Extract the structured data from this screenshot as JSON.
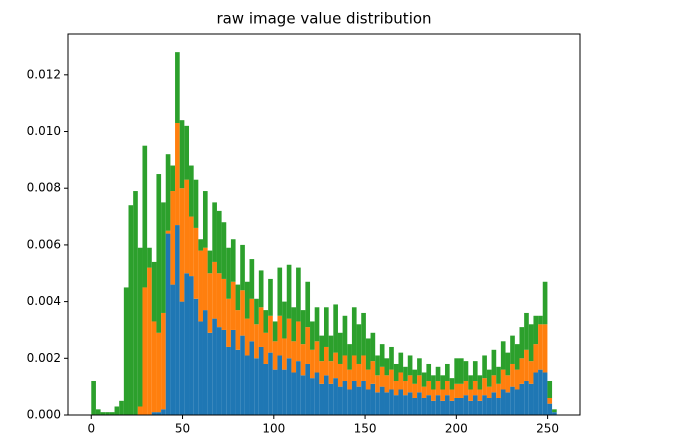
{
  "chart_data": {
    "type": "histogram",
    "title": "raw image value distribution",
    "stacked": true,
    "bins": [
      0,
      2.55,
      5.1,
      7.65,
      10.2,
      12.75,
      15.3,
      17.85,
      20.4,
      22.95,
      25.5,
      28.05,
      30.6,
      33.15,
      35.7,
      38.25,
      40.8,
      43.35,
      45.9,
      48.45,
      51,
      53.55,
      56.1,
      58.65,
      61.2,
      63.75,
      66.3,
      68.85,
      71.4,
      73.95,
      76.5,
      79.05,
      81.6,
      84.15,
      86.7,
      89.25,
      91.8,
      94.35,
      96.9,
      99.45,
      102,
      104.55,
      107.1,
      109.65,
      112.2,
      114.75,
      117.3,
      119.85,
      122.4,
      124.95,
      127.5,
      130.05,
      132.6,
      135.15,
      137.7,
      140.25,
      142.8,
      145.35,
      147.9,
      150.45,
      153,
      155.55,
      158.1,
      160.65,
      163.2,
      165.75,
      168.3,
      170.85,
      173.4,
      175.95,
      178.5,
      181.05,
      183.6,
      186.15,
      188.7,
      191.25,
      193.8,
      196.35,
      198.9,
      201.45,
      204,
      206.55,
      209.1,
      211.65,
      214.2,
      216.75,
      219.3,
      221.85,
      224.4,
      226.95,
      229.5,
      232.05,
      234.6,
      237.15,
      239.7,
      242.25,
      244.8,
      247.35,
      249.9,
      252.45,
      255
    ],
    "series": [
      {
        "color": "#1f77b4",
        "values": [
          0,
          0,
          0,
          0,
          0,
          0,
          0,
          0,
          0,
          0,
          0,
          0,
          0,
          0.0001,
          0.0001,
          0.0002,
          0.0064,
          0.0046,
          0.0067,
          0.004,
          0.005,
          0.0049,
          0.0041,
          0.0033,
          0.0037,
          0.0029,
          0.0034,
          0.0031,
          0.003,
          0.0024,
          0.003,
          0.0023,
          0.0028,
          0.0021,
          0.0026,
          0.002,
          0.0024,
          0.0018,
          0.0022,
          0.0016,
          0.0021,
          0.0016,
          0.002,
          0.0015,
          0.0019,
          0.0014,
          0.0018,
          0.0013,
          0.0015,
          0.0011,
          0.0014,
          0.0011,
          0.0013,
          0.001,
          0.0012,
          0.0009,
          0.0012,
          0.001,
          0.0012,
          0.0009,
          0.0011,
          0.0008,
          0.001,
          0.0008,
          0.0009,
          0.0007,
          0.0009,
          0.0007,
          0.0008,
          0.0006,
          0.0008,
          0.0006,
          0.0007,
          0.0005,
          0.0007,
          0.0005,
          0.0007,
          0.0005,
          0.0006,
          0.0006,
          0.0007,
          0.0005,
          0.0007,
          0.0005,
          0.0007,
          0.0006,
          0.0008,
          0.0006,
          0.0009,
          0.0008,
          0.001,
          0.0009,
          0.0011,
          0.0012,
          0.0011,
          0.0015,
          0.0016,
          0.0015,
          0.0004,
          0.0001
        ]
      },
      {
        "color": "#ff7f0e",
        "values": [
          0,
          0,
          0,
          0,
          0,
          0,
          0,
          0,
          0,
          0,
          0.0003,
          0.0045,
          0.0052,
          0.0032,
          0.0028,
          0.0034,
          0.0001,
          0.0033,
          0.0036,
          0.004,
          0.0033,
          0.0021,
          0.0025,
          0.0025,
          0.0022,
          0.0021,
          0.002,
          0.0019,
          0.0018,
          0.0017,
          0.0017,
          0.0014,
          0.0016,
          0.0013,
          0.0015,
          0.0012,
          0.0014,
          0.0011,
          0.0013,
          0.001,
          0.0014,
          0.0011,
          0.0014,
          0.0011,
          0.0014,
          0.0011,
          0.0013,
          0.001,
          0.0011,
          0.0008,
          0.001,
          0.0008,
          0.0009,
          0.0008,
          0.0009,
          0.0007,
          0.0009,
          0.0008,
          0.0009,
          0.0007,
          0.0008,
          0.0006,
          0.0007,
          0.0006,
          0.0007,
          0.0005,
          0.0006,
          0.0005,
          0.0006,
          0.0005,
          0.0006,
          0.0004,
          0.0005,
          0.0004,
          0.0005,
          0.0004,
          0.0005,
          0.0004,
          0.0005,
          0.0005,
          0.0005,
          0.0004,
          0.0005,
          0.0004,
          0.0006,
          0.0004,
          0.0006,
          0.0005,
          0.0007,
          0.0006,
          0.0008,
          0.0007,
          0.0009,
          0.0011,
          0.0008,
          0.001,
          0.0016,
          0.0017,
          0.0002,
          0
        ]
      },
      {
        "color": "#2ca02c",
        "values": [
          0.0012,
          0.0002,
          0.0001,
          0.0001,
          0.0001,
          0.0003,
          0.0005,
          0.0045,
          0.0074,
          0.0079,
          0.0056,
          0.005,
          0.0007,
          0.0021,
          0.0056,
          0.0039,
          0.0027,
          0.0009,
          0.0025,
          0.0024,
          0.0019,
          0.0018,
          0.0017,
          0.0004,
          0.002,
          0.0008,
          0.0021,
          0.0022,
          0.002,
          0.0018,
          0.0015,
          0.0009,
          0.0016,
          0.0013,
          0.0014,
          0.0009,
          0.0013,
          0.0008,
          0.0013,
          0.0007,
          0.0017,
          0.0013,
          0.0019,
          0.0012,
          0.0019,
          0.0012,
          0.0016,
          0.001,
          0.0012,
          0.0009,
          0.0014,
          0.0009,
          0.0017,
          0.0011,
          0.0014,
          0.0009,
          0.0017,
          0.0014,
          0.0015,
          0.0011,
          0.001,
          0.0007,
          0.0008,
          0.0006,
          0.0008,
          0.0006,
          0.0007,
          0.0005,
          0.0007,
          0.0005,
          0.0006,
          0.0005,
          0.0006,
          0.0005,
          0.0005,
          0.0005,
          0.0006,
          0.0004,
          0.0009,
          0.0009,
          0.0007,
          0.0005,
          0.0007,
          0.0005,
          0.0008,
          0.0006,
          0.0009,
          0.0006,
          0.001,
          0.0008,
          0.001,
          0.0009,
          0.0011,
          0.0013,
          0.0013,
          0.001,
          0.0003,
          0.0015,
          0.0006,
          0.0001
        ]
      }
    ],
    "xlim": [
      -12.75,
      267.75
    ],
    "xticks": [
      0,
      50,
      100,
      150,
      200,
      250
    ],
    "ylim": [
      0,
      0.01344
    ],
    "yticks": [
      {
        "value": 0,
        "label": "0.000"
      },
      {
        "value": 0.002,
        "label": "0.002"
      },
      {
        "value": 0.004,
        "label": "0.004"
      },
      {
        "value": 0.006,
        "label": "0.006"
      },
      {
        "value": 0.008,
        "label": "0.008"
      },
      {
        "value": 0.01,
        "label": "0.010"
      },
      {
        "value": 0.012,
        "label": "0.012"
      }
    ],
    "grid": false
  }
}
